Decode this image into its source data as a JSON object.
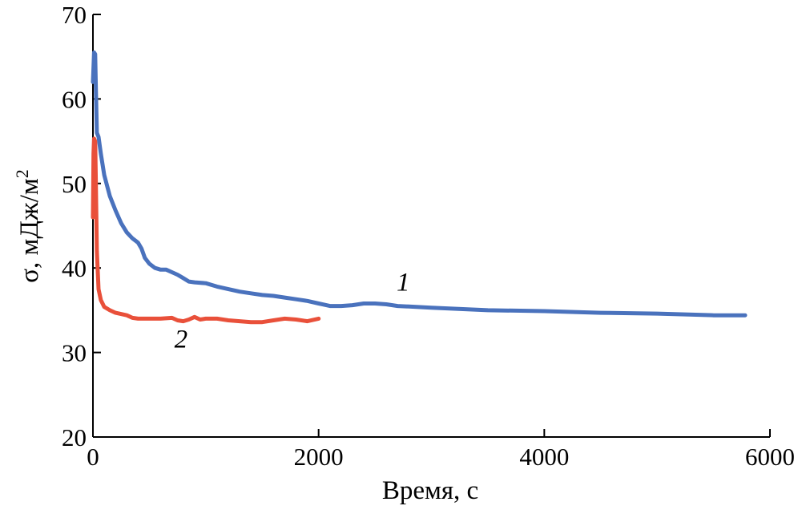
{
  "chart_data": {
    "type": "line",
    "xlabel": "Время, с",
    "ylabel_main": "σ, мДж/м",
    "ylabel_sup": "2",
    "xlim": [
      0,
      6000
    ],
    "ylim": [
      20,
      70
    ],
    "x_ticks": [
      0,
      2000,
      4000,
      6000
    ],
    "y_ticks": [
      20,
      30,
      40,
      50,
      60,
      70
    ],
    "grid": false,
    "colors": {
      "series1": "#4a72bd",
      "series2": "#e9503a"
    },
    "series": [
      {
        "name": "1",
        "label_at": [
          2750,
          37.3
        ],
        "points": [
          [
            0,
            62
          ],
          [
            10,
            65.5
          ],
          [
            20,
            65.3
          ],
          [
            25,
            62
          ],
          [
            35,
            56
          ],
          [
            50,
            55.5
          ],
          [
            70,
            53.5
          ],
          [
            100,
            51
          ],
          [
            150,
            48.5
          ],
          [
            200,
            46.8
          ],
          [
            250,
            45.3
          ],
          [
            300,
            44.2
          ],
          [
            350,
            43.5
          ],
          [
            400,
            43
          ],
          [
            430,
            42.3
          ],
          [
            460,
            41.2
          ],
          [
            500,
            40.5
          ],
          [
            550,
            40
          ],
          [
            600,
            39.8
          ],
          [
            650,
            39.8
          ],
          [
            700,
            39.5
          ],
          [
            750,
            39.2
          ],
          [
            800,
            38.8
          ],
          [
            850,
            38.4
          ],
          [
            900,
            38.3
          ],
          [
            1000,
            38.2
          ],
          [
            1100,
            37.8
          ],
          [
            1200,
            37.5
          ],
          [
            1300,
            37.2
          ],
          [
            1400,
            37
          ],
          [
            1500,
            36.8
          ],
          [
            1600,
            36.7
          ],
          [
            1700,
            36.5
          ],
          [
            1800,
            36.3
          ],
          [
            1900,
            36.1
          ],
          [
            2000,
            35.8
          ],
          [
            2100,
            35.5
          ],
          [
            2200,
            35.5
          ],
          [
            2300,
            35.6
          ],
          [
            2400,
            35.8
          ],
          [
            2500,
            35.8
          ],
          [
            2600,
            35.7
          ],
          [
            2700,
            35.5
          ],
          [
            3000,
            35.3
          ],
          [
            3500,
            35
          ],
          [
            4000,
            34.9
          ],
          [
            4500,
            34.7
          ],
          [
            5000,
            34.6
          ],
          [
            5500,
            34.4
          ],
          [
            5780,
            34.4
          ]
        ]
      },
      {
        "name": "2",
        "label_at": [
          780,
          30.6
        ],
        "points": [
          [
            0,
            46
          ],
          [
            5,
            53.5
          ],
          [
            10,
            55.3
          ],
          [
            20,
            55
          ],
          [
            25,
            51
          ],
          [
            35,
            42
          ],
          [
            50,
            37.5
          ],
          [
            70,
            36.2
          ],
          [
            100,
            35.4
          ],
          [
            150,
            35
          ],
          [
            200,
            34.7
          ],
          [
            300,
            34.4
          ],
          [
            350,
            34.1
          ],
          [
            400,
            34
          ],
          [
            500,
            34
          ],
          [
            600,
            34
          ],
          [
            700,
            34.1
          ],
          [
            750,
            33.8
          ],
          [
            800,
            33.7
          ],
          [
            850,
            33.9
          ],
          [
            900,
            34.2
          ],
          [
            950,
            33.9
          ],
          [
            1000,
            34
          ],
          [
            1100,
            34
          ],
          [
            1200,
            33.8
          ],
          [
            1300,
            33.7
          ],
          [
            1400,
            33.6
          ],
          [
            1500,
            33.6
          ],
          [
            1600,
            33.8
          ],
          [
            1700,
            34
          ],
          [
            1800,
            33.9
          ],
          [
            1900,
            33.7
          ],
          [
            2000,
            34
          ]
        ]
      }
    ]
  }
}
